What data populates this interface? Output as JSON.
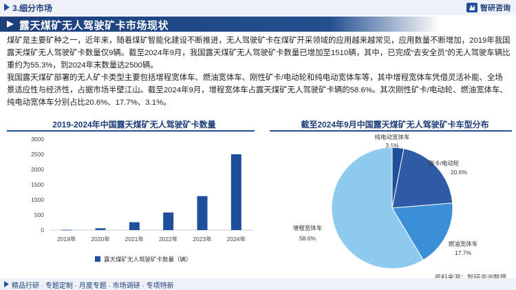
{
  "header": {
    "section_title": "3.细分市场",
    "brand_name": "智研咨询"
  },
  "heading": "露天煤矿无人驾驶矿卡市场现状",
  "paragraphs": [
    "煤矿是主要矿种之一，近年来，随着煤矿智能化建设不断推进，无人驾驶矿卡在煤矿开采领域的应用越来越常见，应用数量不断增加，2019年我国露天煤矿无人驾驶矿卡数量仅9辆。截至2024年9月，我国露天煤矿无人驾驶矿卡数量已增加至1510辆，其中，已完成“去安全员”的无人驾驶车辆比重约为55.3%，到2024年末数量达2500辆。",
    "我国露天煤矿部署的无人矿卡类型主要包括增程宽体车、燃油宽体车、刚性矿卡/电动轮和纯电动宽体车等，其中增程宽体车凭借灵活补能、全场景适应性与经济性，占据市场半壁江山。截至2024年9月，增程宽体车占露天煤矿无人驾驶矿卡辆的58.6%。其次刚性矿卡/电动轮、燃油宽体车、纯电动宽体车分别占比20.6%、17.7%、3.1%。"
  ],
  "chart_data": [
    {
      "type": "bar",
      "title": "2019-2024年中国露天煤矿无人驾驶矿卡数量",
      "categories": [
        "2019年",
        "2020年",
        "2021年",
        "2022年",
        "2023年",
        "2024年"
      ],
      "series": [
        {
          "name": "露天煤矿无人驾驶矿卡数量（辆）",
          "values": [
            9,
            60,
            260,
            580,
            1120,
            2500
          ]
        }
      ],
      "ylim": [
        0,
        3000
      ],
      "yticks": [
        0,
        500,
        1000,
        1500,
        2000,
        2500,
        3000
      ],
      "grid": false,
      "legend": "bottom",
      "color": "#1f4e9c"
    },
    {
      "type": "pie",
      "title": "截至2024年9月中国露天煤矿无人驾驶矿卡车型分布",
      "slices": [
        {
          "name": "纯电动宽体车",
          "value": 3.1,
          "label": "3.1%",
          "color": "#1f4e9c"
        },
        {
          "name": "刚卡/电动轮",
          "value": 20.6,
          "label": "20.6%",
          "color": "#2f5ba6"
        },
        {
          "name": "燃油宽体车",
          "value": 17.7,
          "label": "17.7%",
          "color": "#3a8fd6"
        },
        {
          "name": "增程宽体车",
          "value": 58.6,
          "label": "58.6%",
          "color": "#8ec9ee"
        }
      ]
    }
  ],
  "source": "资料来源：智研咨询整理",
  "footer": "精品行研 · 专题定制 · 月度专题 · 市场调研 · 专项特新"
}
